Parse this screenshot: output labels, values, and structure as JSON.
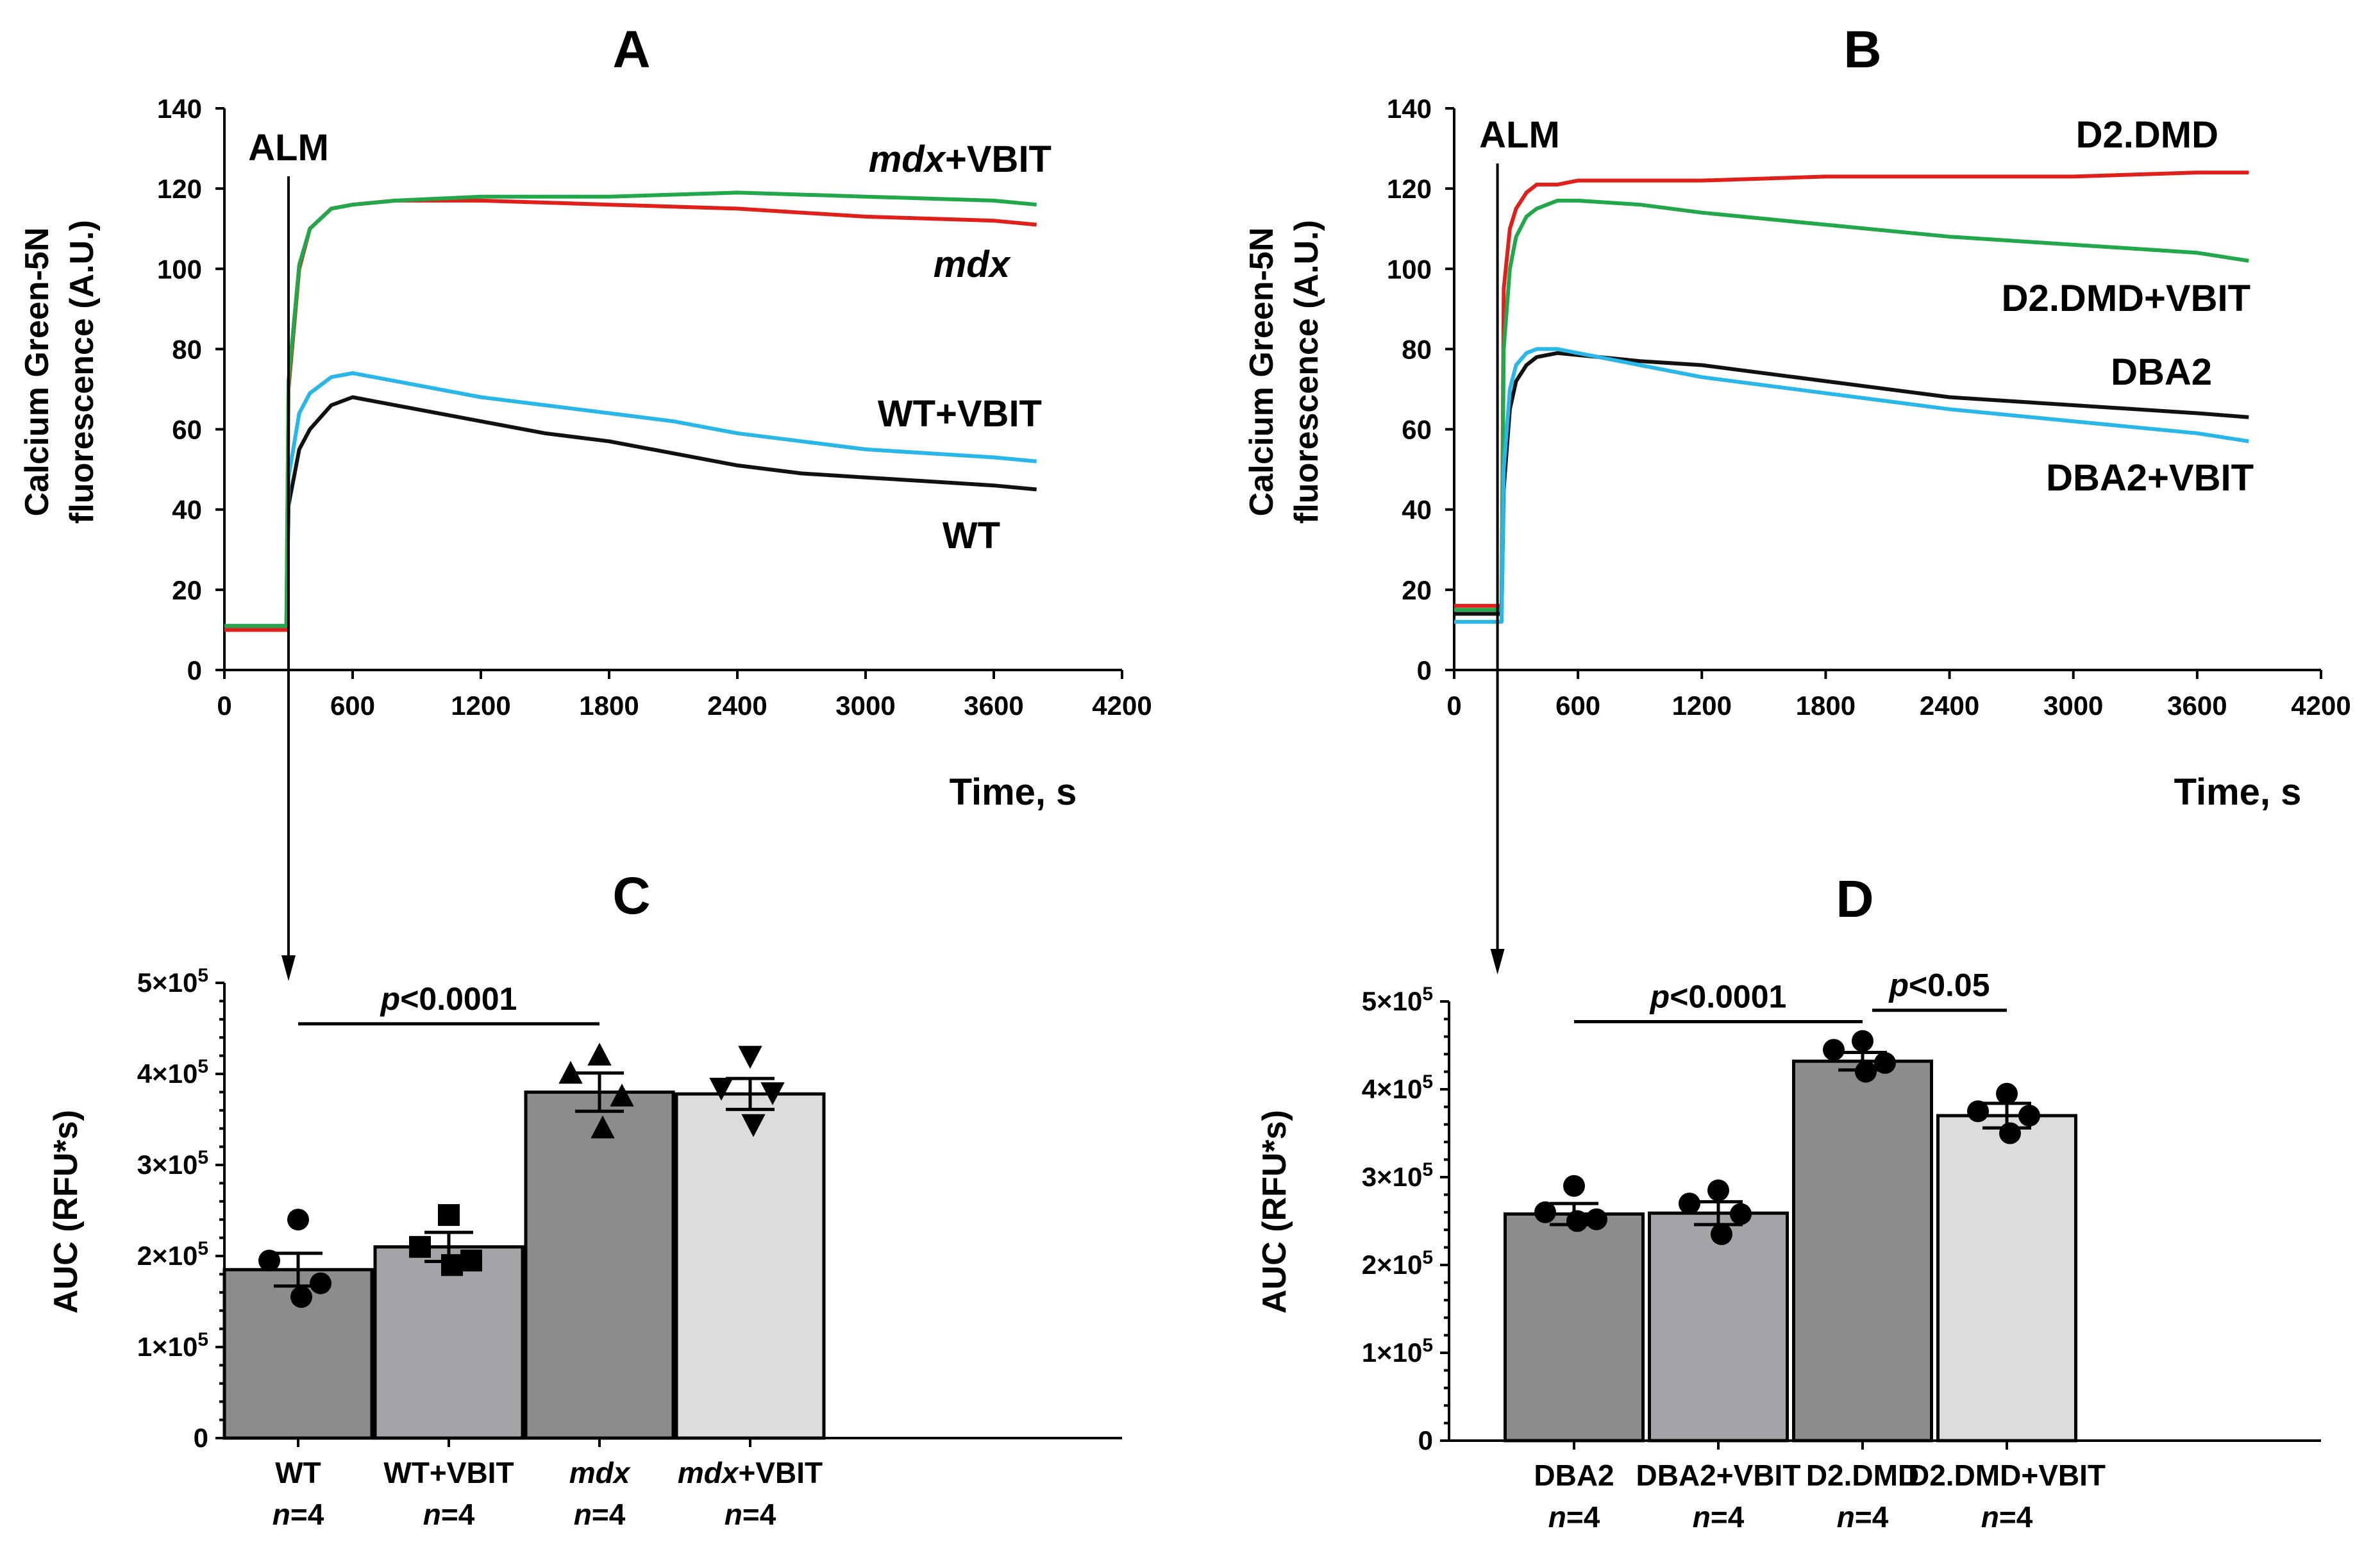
{
  "colors": {
    "red": "#e0201b",
    "green": "#22a84a",
    "blue": "#29b6e8",
    "black": "#111111",
    "bar_dark": "#8c8c8c",
    "bar_mid": "#a3a3a8",
    "bar_light": "#dcdcdc"
  },
  "chart_data": [
    {
      "panel": "A",
      "type": "line",
      "title": "A",
      "ylabel_line1": "Calcium Green-5N",
      "ylabel_line2": "fluorescence (A.U.)",
      "xlabel": "Time, s",
      "xlim": [
        0,
        4200
      ],
      "ylim": [
        0,
        140
      ],
      "xticks": [
        "0",
        "600",
        "1200",
        "1800",
        "2400",
        "3000",
        "3600",
        "4200"
      ],
      "yticks": [
        "0",
        "20",
        "40",
        "60",
        "80",
        "100",
        "120",
        "140"
      ],
      "annotation": "ALM",
      "annotation_x": 300,
      "series": [
        {
          "name": "WT",
          "label": "WT",
          "color": "#111111",
          "x": [
            0,
            290,
            300,
            350,
            400,
            500,
            600,
            700,
            900,
            1200,
            1500,
            1800,
            2100,
            2400,
            2700,
            3000,
            3300,
            3600,
            3800
          ],
          "y": [
            10,
            10,
            41,
            55,
            60,
            66,
            68,
            67,
            65,
            62,
            59,
            57,
            54,
            51,
            49,
            48,
            47,
            46,
            45
          ]
        },
        {
          "name": "WT+VBIT",
          "label": "WT+VBIT",
          "color": "#29b6e8",
          "x": [
            0,
            290,
            300,
            350,
            400,
            500,
            600,
            700,
            900,
            1200,
            1500,
            1800,
            2100,
            2400,
            2700,
            3000,
            3300,
            3600,
            3800
          ],
          "y": [
            11,
            11,
            48,
            64,
            69,
            73,
            74,
            73,
            71,
            68,
            66,
            64,
            62,
            59,
            57,
            55,
            54,
            53,
            52
          ]
        },
        {
          "name": "mdx",
          "label": "mdx",
          "color": "#e0201b",
          "x": [
            0,
            290,
            300,
            350,
            400,
            500,
            600,
            800,
            1200,
            1800,
            2400,
            3000,
            3600,
            3800
          ],
          "y": [
            10,
            10,
            70,
            100,
            110,
            115,
            116,
            117,
            117,
            116,
            115,
            113,
            112,
            111
          ]
        },
        {
          "name": "mdx+VBIT",
          "label_prefix": "mdx",
          "label_suffix": "+VBIT",
          "color": "#22a84a",
          "x": [
            0,
            290,
            300,
            350,
            400,
            500,
            600,
            800,
            1200,
            1800,
            2400,
            3000,
            3600,
            3800
          ],
          "y": [
            11,
            11,
            72,
            101,
            110,
            115,
            116,
            117,
            118,
            118,
            119,
            118,
            117,
            116
          ]
        }
      ]
    },
    {
      "panel": "B",
      "type": "line",
      "title": "B",
      "ylabel_line1": "Calcium Green-5N",
      "ylabel_line2": "fluorescence (A.U.)",
      "xlabel": "Time, s",
      "xlim": [
        0,
        4200
      ],
      "ylim": [
        0,
        140
      ],
      "xticks": [
        "0",
        "600",
        "1200",
        "1800",
        "2400",
        "3000",
        "3600",
        "4200"
      ],
      "yticks": [
        "0",
        "20",
        "40",
        "60",
        "80",
        "100",
        "120",
        "140"
      ],
      "annotation": "ALM",
      "annotation_x": 210,
      "series": [
        {
          "name": "D2.DMD",
          "label": "D2.DMD",
          "color": "#e0201b",
          "x": [
            0,
            230,
            240,
            270,
            300,
            350,
            400,
            500,
            600,
            900,
            1200,
            1800,
            2400,
            3000,
            3600,
            3850
          ],
          "y": [
            16,
            16,
            95,
            110,
            115,
            119,
            121,
            121,
            122,
            122,
            122,
            123,
            123,
            123,
            124,
            124
          ]
        },
        {
          "name": "D2.DMD+VBIT",
          "label": "D2.DMD+VBIT",
          "color": "#22a84a",
          "x": [
            0,
            230,
            240,
            270,
            300,
            350,
            400,
            500,
            600,
            900,
            1200,
            1800,
            2400,
            3000,
            3600,
            3850
          ],
          "y": [
            15,
            15,
            80,
            100,
            108,
            113,
            115,
            117,
            117,
            116,
            114,
            111,
            108,
            106,
            104,
            102
          ]
        },
        {
          "name": "DBA2",
          "label": "DBA2",
          "color": "#111111",
          "x": [
            0,
            230,
            240,
            270,
            300,
            350,
            400,
            500,
            700,
            900,
            1200,
            1800,
            2400,
            3000,
            3600,
            3850
          ],
          "y": [
            14,
            14,
            45,
            65,
            72,
            76,
            78,
            79,
            78,
            77,
            76,
            72,
            68,
            66,
            64,
            63
          ]
        },
        {
          "name": "DBA2+VBIT",
          "label": "DBA2+VBIT",
          "color": "#29b6e8",
          "x": [
            0,
            230,
            240,
            270,
            300,
            350,
            400,
            500,
            700,
            900,
            1200,
            1800,
            2400,
            3000,
            3600,
            3850
          ],
          "y": [
            12,
            12,
            50,
            70,
            76,
            79,
            80,
            80,
            78,
            76,
            73,
            69,
            65,
            62,
            59,
            57
          ]
        }
      ]
    },
    {
      "panel": "C",
      "type": "bar",
      "title": "C",
      "ylabel": "AUC (RFU*s)",
      "ylim": [
        0,
        500000
      ],
      "yticks": [
        {
          "base": "0",
          "exp": ""
        },
        {
          "base": "1×10",
          "exp": "5"
        },
        {
          "base": "2×10",
          "exp": "5"
        },
        {
          "base": "3×10",
          "exp": "5"
        },
        {
          "base": "4×10",
          "exp": "5"
        },
        {
          "base": "5×10",
          "exp": "5"
        }
      ],
      "categories": [
        {
          "name": "WT",
          "italic_part": "",
          "plain_part": "WT",
          "n_label": "n",
          "n_value": "=4",
          "value": 185000,
          "sem": 18000,
          "color": "#8c8c8c",
          "marker": "circle",
          "points": [
            240000,
            195000,
            170000,
            155000
          ]
        },
        {
          "name": "WT+VBIT",
          "italic_part": "",
          "plain_part": "WT+VBIT",
          "n_label": "n",
          "n_value": "=4",
          "value": 210000,
          "sem": 16000,
          "color": "#a3a3a8",
          "marker": "square",
          "points": [
            245000,
            210000,
            195000,
            190000
          ]
        },
        {
          "name": "mdx",
          "italic_part": "mdx",
          "plain_part": "",
          "n_label": "n",
          "n_value": "=4",
          "value": 380000,
          "sem": 21000,
          "color": "#8c8c8c",
          "marker": "triangle-up",
          "points": [
            420000,
            400000,
            375000,
            340000
          ]
        },
        {
          "name": "mdx+VBIT",
          "italic_part": "mdx",
          "plain_part": "+VBIT",
          "n_label": "n",
          "n_value": "=4",
          "value": 378000,
          "sem": 17000,
          "color": "#dcdcdc",
          "marker": "triangle-down",
          "points": [
            420000,
            385000,
            380000,
            345000
          ]
        }
      ],
      "comparisons": [
        {
          "from": 0,
          "to": 2,
          "p_label": "p",
          "p_value": "<0.0001",
          "y": 455000
        }
      ]
    },
    {
      "panel": "D",
      "type": "bar",
      "title": "D",
      "ylabel": "AUC (RFU*s)",
      "ylim": [
        0,
        500000
      ],
      "yticks": [
        {
          "base": "0",
          "exp": ""
        },
        {
          "base": "1×10",
          "exp": "5"
        },
        {
          "base": "2×10",
          "exp": "5"
        },
        {
          "base": "3×10",
          "exp": "5"
        },
        {
          "base": "4×10",
          "exp": "5"
        },
        {
          "base": "5×10",
          "exp": "5"
        }
      ],
      "categories": [
        {
          "name": "DBA2",
          "italic_part": "",
          "plain_part": "DBA2",
          "n_label": "n",
          "n_value": "=4",
          "value": 258000,
          "sem": 12000,
          "color": "#8c8c8c",
          "marker": "circle",
          "points": [
            290000,
            260000,
            252000,
            250000
          ]
        },
        {
          "name": "DBA2+VBIT",
          "italic_part": "",
          "plain_part": "DBA2+VBIT",
          "n_label": "n",
          "n_value": "=4",
          "value": 259000,
          "sem": 13000,
          "color": "#a3a3a8",
          "marker": "circle",
          "points": [
            285000,
            270000,
            258000,
            235000
          ]
        },
        {
          "name": "D2.DMD",
          "italic_part": "",
          "plain_part": "D2.DMD",
          "n_label": "n",
          "n_value": "=4",
          "value": 432000,
          "sem": 10000,
          "color": "#8c8c8c",
          "marker": "circle",
          "points": [
            455000,
            445000,
            430000,
            420000
          ]
        },
        {
          "name": "D2.DMD+VBIT",
          "italic_part": "",
          "plain_part": "D2.DMD+VBIT",
          "n_label": "n",
          "n_value": "=4",
          "value": 370000,
          "sem": 14000,
          "color": "#dcdcdc",
          "marker": "circle",
          "points": [
            395000,
            375000,
            370000,
            350000
          ]
        }
      ],
      "comparisons": [
        {
          "from": 0,
          "to": 2,
          "p_label": "p",
          "p_value": "<0.0001",
          "y": 477000
        },
        {
          "from": 2,
          "to": 3,
          "p_label": "p",
          "p_value": "<0.05",
          "y": 490000
        }
      ]
    }
  ]
}
